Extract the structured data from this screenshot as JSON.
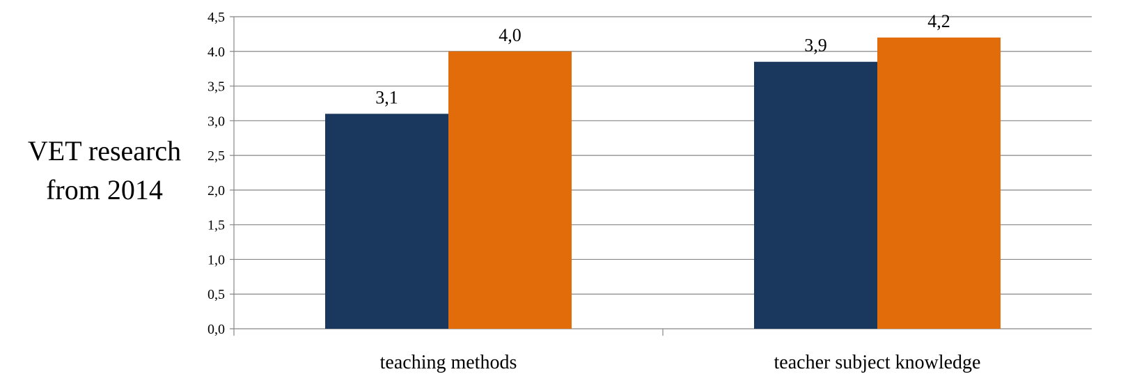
{
  "chart_data": {
    "type": "bar",
    "categories": [
      "teaching methods",
      "teacher subject knowledge"
    ],
    "series": [
      {
        "values": [
          3.1,
          3.85
        ],
        "labels": [
          "3,1",
          "3,9"
        ],
        "color": "#1a375e"
      },
      {
        "values": [
          4.0,
          4.2
        ],
        "labels": [
          "4,0",
          "4,2"
        ],
        "color": "#e36c0a"
      }
    ],
    "ylabel_lines": [
      "VET research",
      "from 2014"
    ],
    "ylim": [
      0,
      4.5
    ],
    "yticks": [
      {
        "value": 0.0,
        "label": "0,0"
      },
      {
        "value": 0.5,
        "label": "0,5"
      },
      {
        "value": 1.0,
        "label": "1,0"
      },
      {
        "value": 1.5,
        "label": "1,5"
      },
      {
        "value": 2.0,
        "label": "2,0"
      },
      {
        "value": 2.5,
        "label": "2,5"
      },
      {
        "value": 3.0,
        "label": "3,0"
      },
      {
        "value": 3.5,
        "label": "3,5"
      },
      {
        "value": 4.0,
        "label": "4.0"
      },
      {
        "value": 4.5,
        "label": "4,5"
      }
    ],
    "grid": true,
    "legend": "none",
    "gridline_color": "#868686"
  }
}
